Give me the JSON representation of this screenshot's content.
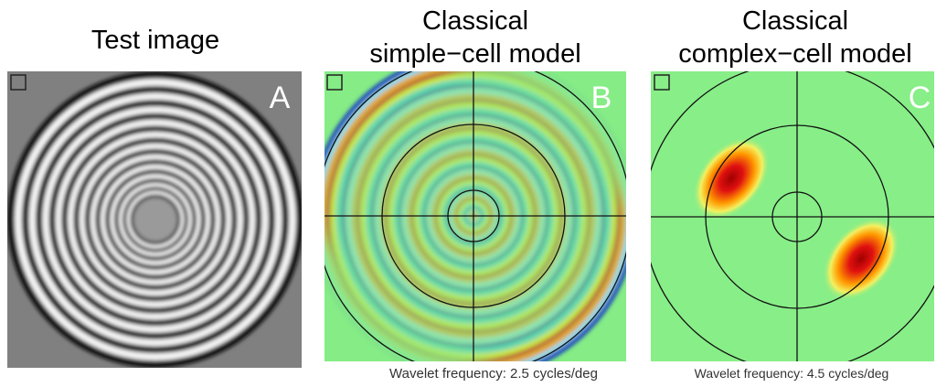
{
  "panels": [
    {
      "title": [
        "Test image"
      ],
      "letter": "A"
    },
    {
      "title": [
        "Classical",
        "simple−cell model"
      ],
      "letter": "B",
      "caption": "Wavelet frequency: 2.5 cycles/deg"
    },
    {
      "title": [
        "Classical",
        "complex−cell model"
      ],
      "letter": "C",
      "caption": "Wavelet frequency: 4.5 cycles/deg"
    }
  ]
}
